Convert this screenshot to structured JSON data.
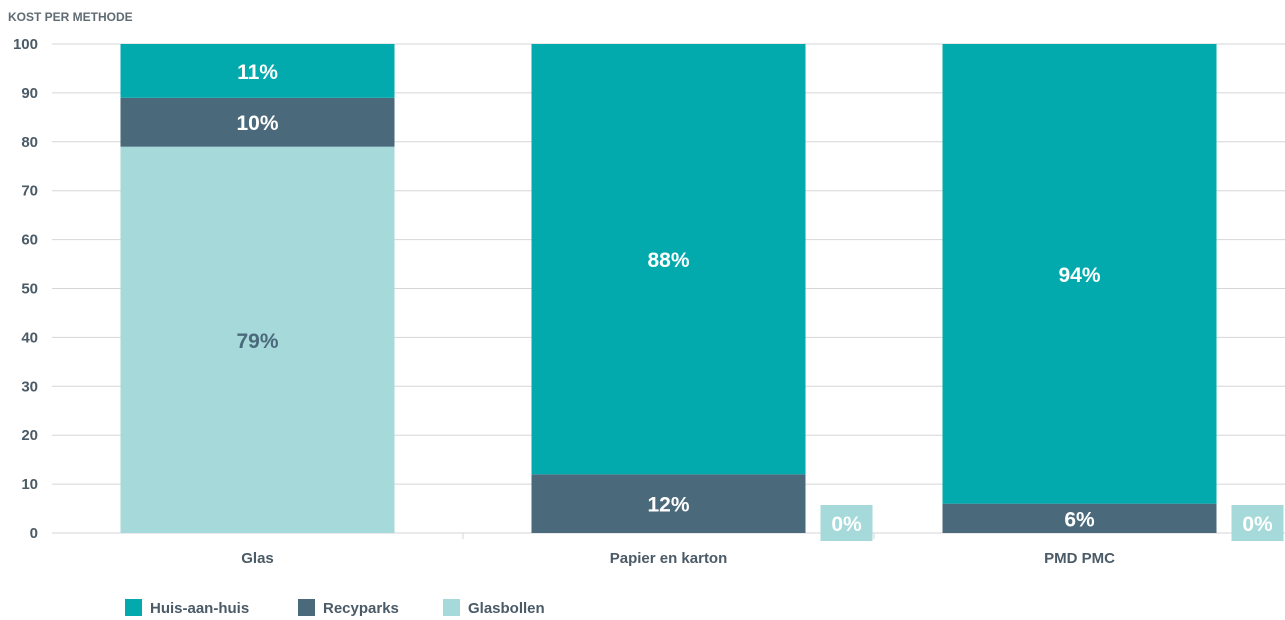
{
  "chart_data": {
    "type": "bar",
    "stacked": true,
    "title": "KOST PER METHODE",
    "categories": [
      "Glas",
      "Papier en karton",
      "PMD PMC"
    ],
    "series": [
      {
        "name": "Glasbollen",
        "values": [
          79,
          0,
          0
        ],
        "labels": [
          "79%",
          "0%",
          "0%"
        ],
        "color": "#a6d9da",
        "label_color": "#4a6a7c"
      },
      {
        "name": "Recyparks",
        "values": [
          10,
          12,
          6
        ],
        "labels": [
          "10%",
          "12%",
          "6%"
        ],
        "color": "#4a6a7c",
        "label_color": "#ffffff"
      },
      {
        "name": "Huis-aan-huis",
        "values": [
          11,
          88,
          94
        ],
        "labels": [
          "11%",
          "88%",
          "94%"
        ],
        "color": "#02a9ad",
        "label_color": "#ffffff"
      }
    ],
    "legend_order": [
      "Huis-aan-huis",
      "Recyparks",
      "Glasbollen"
    ],
    "ylim": [
      0,
      100
    ],
    "yticks": [
      0,
      10,
      20,
      30,
      40,
      50,
      60,
      70,
      80,
      90,
      100
    ],
    "grid": true,
    "legend_position": "bottom-left",
    "xlabel": "",
    "ylabel": ""
  }
}
